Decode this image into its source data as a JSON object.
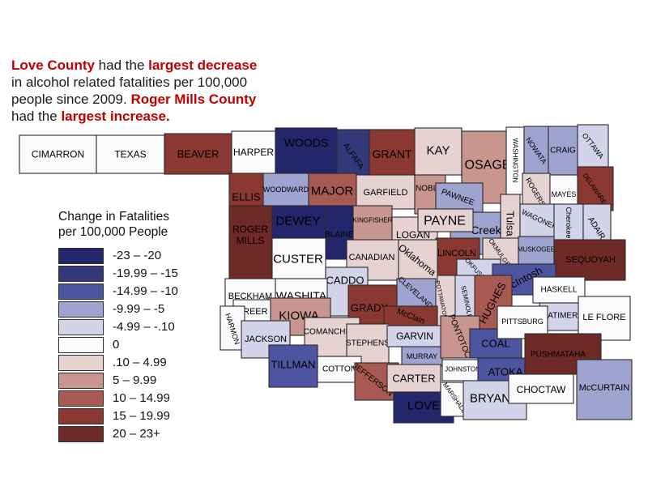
{
  "colors": {
    "accent_red": "#c00000",
    "text": "#1a1a1a",
    "county_stroke": "#2b2b2b"
  },
  "annotation": {
    "segments": [
      {
        "text": "Love County",
        "em": true
      },
      {
        "text": " had the ",
        "em": false
      },
      {
        "text": "largest decrease",
        "em": true
      },
      {
        "text": "\nin alcohol related fatalities per 100,000\npeople since 2009. ",
        "em": false
      },
      {
        "text": "Roger Mills County",
        "em": true
      },
      {
        "text": "\nhad the ",
        "em": false
      },
      {
        "text": "largest increase.",
        "em": true
      }
    ]
  },
  "legend": {
    "title": "Change in Fatalities\nper 100,000 People"
  },
  "chart_data": {
    "type": "choropleth",
    "region": "Oklahoma counties",
    "title": "Change in Fatalities per 100,000 People",
    "note": "Change in alcohol related fatalities per 100,000 people since 2009; Love County largest decrease, Roger Mills County largest increase",
    "buckets": [
      {
        "label": "-23 – -20",
        "color": "#23266b"
      },
      {
        "label": "-19.99 – -15",
        "color": "#333879"
      },
      {
        "label": "-14.99 – -10",
        "color": "#4d55a0"
      },
      {
        "label": "-9.99 – -5",
        "color": "#9fa3cf"
      },
      {
        "label": "-4.99 – -.10",
        "color": "#d3d3e9"
      },
      {
        "label": "0",
        "color": "#fbfbfe"
      },
      {
        "label": ".10 – 4.99",
        "color": "#e6d3d1"
      },
      {
        "label": "5 – 9.99",
        "color": "#c8958f"
      },
      {
        "label": "10 – 14.99",
        "color": "#a85a52"
      },
      {
        "label": "15 – 19.99",
        "color": "#8b3833"
      },
      {
        "label": "20 – 23+",
        "color": "#6e2a26"
      }
    ],
    "counties": [
      {
        "n": "CIMARRON",
        "b": 5,
        "r": [
          24,
          167,
          95,
          47
        ],
        "fs": 12
      },
      {
        "n": "TEXAS",
        "b": 5,
        "r": [
          119,
          167,
          84,
          47
        ],
        "fs": 12
      },
      {
        "n": "BEAVER",
        "b": 9,
        "r": [
          203,
          165,
          83,
          50
        ],
        "fs": 13
      },
      {
        "n": "HARPER",
        "b": 5,
        "r": [
          286,
          162,
          54,
          52
        ],
        "fs": 12
      },
      {
        "n": "WOODS",
        "b": 0,
        "r": [
          340,
          158,
          76,
          58
        ],
        "fs": 14,
        "lbl": [
          378,
          176
        ]
      },
      {
        "n": "ALFAFA",
        "b": 1,
        "r": [
          416,
          160,
          40,
          68
        ],
        "fs": 10,
        "rot": 55,
        "lbl": [
          436,
          193
        ]
      },
      {
        "n": "GRANT",
        "b": 9,
        "r": [
          456,
          160,
          56,
          58
        ],
        "fs": 14,
        "lbl": [
          484,
          190
        ]
      },
      {
        "n": "KAY",
        "b": 6,
        "r": [
          512,
          158,
          58,
          58
        ],
        "fs": 15,
        "lbl": [
          541,
          186
        ]
      },
      {
        "n": "OSAGE",
        "b": 7,
        "r": [
          570,
          162,
          66,
          89
        ],
        "fs": 16,
        "lbl": [
          602,
          204
        ]
      },
      {
        "n": "WASHINGTON",
        "b": 5,
        "r": [
          625,
          157,
          22,
          83
        ],
        "fs": 8,
        "rot": 90,
        "lbl": [
          636,
          198
        ]
      },
      {
        "n": "NOWATA",
        "b": 3,
        "r": [
          647,
          156,
          30,
          62
        ],
        "fs": 9,
        "rot": 55,
        "lbl": [
          662,
          186
        ]
      },
      {
        "n": "CRAIG",
        "b": 3,
        "r": [
          677,
          156,
          36,
          60
        ],
        "fs": 10,
        "lbl": [
          695,
          186
        ]
      },
      {
        "n": "OTTAWA",
        "b": 4,
        "r": [
          713,
          154,
          38,
          52
        ],
        "fs": 9,
        "rot": 52,
        "lbl": [
          732,
          180
        ]
      },
      {
        "n": "DELAWARE",
        "b": 9,
        "r": [
          713,
          206,
          44,
          54
        ],
        "fs": 8,
        "rot": 55,
        "lbl": [
          734,
          233
        ]
      },
      {
        "n": "ELLIS",
        "b": 9,
        "r": [
          283,
          214,
          42,
          58
        ],
        "fs": 13,
        "lbl": [
          304,
          243
        ]
      },
      {
        "n": "WOODWARD",
        "b": 3,
        "r": [
          325,
          214,
          56,
          40
        ],
        "fs": 9,
        "lbl": [
          353,
          234
        ]
      },
      {
        "n": "MAJOR",
        "b": 8,
        "r": [
          381,
          214,
          59,
          42
        ],
        "fs": 15,
        "lbl": [
          410,
          236
        ]
      },
      {
        "n": "GARFIELD",
        "b": 6,
        "r": [
          440,
          216,
          72,
          42
        ],
        "fs": 11,
        "lbl": [
          476,
          238
        ]
      },
      {
        "n": "NOBLE",
        "b": 7,
        "r": [
          512,
          216,
          38,
          48
        ],
        "fs": 10,
        "lbl": [
          530,
          233
        ]
      },
      {
        "n": "PAWNEE",
        "b": 3,
        "r": [
          538,
          226,
          58,
          36
        ],
        "fs": 10,
        "rot": 20,
        "lbl": [
          565,
          244
        ]
      },
      {
        "n": "ROGERS",
        "b": 6,
        "r": [
          645,
          214,
          34,
          54
        ],
        "fs": 9,
        "rot": 60,
        "lbl": [
          661,
          237
        ]
      },
      {
        "n": "MAYES",
        "b": 5,
        "r": [
          679,
          216,
          34,
          46
        ],
        "fs": 9,
        "lbl": [
          696,
          240
        ]
      },
      {
        "n": "ROGER MILLS",
        "b": 10,
        "r": [
          283,
          254,
          53,
          92
        ],
        "fs": 12,
        "lines": [
          "ROGER",
          "MILLS"
        ],
        "lbl": [
          309,
          290
        ]
      },
      {
        "n": "DEWEY",
        "b": 0,
        "r": [
          336,
          254,
          66,
          40
        ],
        "fs": 15,
        "lbl": [
          368,
          273
        ]
      },
      {
        "n": "BLAINE",
        "b": 0,
        "r": [
          402,
          254,
          34,
          66
        ],
        "fs": 10,
        "lbl": [
          419,
          290
        ]
      },
      {
        "n": "KINGFISHER",
        "b": 7,
        "r": [
          436,
          254,
          48,
          48
        ],
        "fs": 8,
        "lbl": [
          460,
          272
        ]
      },
      {
        "n": "CUSTER",
        "b": 5,
        "r": [
          336,
          294,
          66,
          52
        ],
        "fs": 15,
        "lbl": [
          368,
          320
        ]
      },
      {
        "n": "LOGAN",
        "b": 6,
        "r": [
          484,
          268,
          56,
          46
        ],
        "fs": 12,
        "lbl": [
          510,
          290
        ]
      },
      {
        "n": "Creek",
        "b": 3,
        "r": [
          556,
          262,
          62,
          52
        ],
        "fs": 14,
        "lbl": [
          600,
          284
        ]
      },
      {
        "n": "PAYNE",
        "b": 6,
        "r": [
          516,
          258,
          68,
          28
        ],
        "fs": 16,
        "lbl": [
          549,
          273
        ]
      },
      {
        "n": "LINCOLN",
        "b": 9,
        "r": [
          538,
          294,
          54,
          46
        ],
        "fs": 11,
        "lbl": [
          564,
          313
        ]
      },
      {
        "n": "Tulsa",
        "b": 6,
        "r": [
          618,
          240,
          24,
          74
        ],
        "fs": 13,
        "rot": 90,
        "lbl": [
          630,
          276
        ]
      },
      {
        "n": "WAGONER",
        "b": 4,
        "r": [
          642,
          252,
          52,
          40
        ],
        "fs": 9,
        "rot": 25,
        "lbl": [
          666,
          271
        ]
      },
      {
        "n": "Cherokee",
        "b": 4,
        "r": [
          684,
          252,
          36,
          44
        ],
        "fs": 9,
        "rot": 90,
        "lbl": [
          702,
          275
        ]
      },
      {
        "n": "ADAIR",
        "b": 4,
        "r": [
          720,
          252,
          34,
          70
        ],
        "fs": 10,
        "rot": 58,
        "lbl": [
          736,
          282
        ]
      },
      {
        "n": "OKMULGEE",
        "b": 6,
        "r": [
          596,
          294,
          46,
          42
        ],
        "fs": 8,
        "rot": 55,
        "lbl": [
          618,
          314
        ]
      },
      {
        "n": "MUSKOGEE",
        "b": 3,
        "r": [
          640,
          292,
          44,
          34
        ],
        "fs": 8,
        "lbl": [
          662,
          308
        ]
      },
      {
        "n": "SEQUOYAH",
        "b": 10,
        "r": [
          684,
          296,
          88,
          50
        ],
        "fs": 11,
        "lbl": [
          729,
          321
        ]
      },
      {
        "n": "OKFUSKEE",
        "b": 4,
        "r": [
          564,
          320,
          54,
          34
        ],
        "fs": 8,
        "rot": 48,
        "lbl": [
          590,
          336
        ]
      },
      {
        "n": "McIntosh",
        "b": 2,
        "r": [
          608,
          326,
          78,
          38
        ],
        "fs": 13,
        "rot": -28,
        "lbl": [
          645,
          345
        ]
      },
      {
        "n": "SEMINOLE",
        "b": 4,
        "r": [
          560,
          340,
          32,
          68
        ],
        "fs": 8,
        "rot": 78,
        "lbl": [
          576,
          373
        ]
      },
      {
        "n": "POTTAWATOMIE",
        "b": 6,
        "r": [
          528,
          340,
          34,
          70
        ],
        "fs": 7,
        "rot": 78,
        "lbl": [
          545,
          374
        ]
      },
      {
        "n": "HUGHES",
        "b": 8,
        "r": [
          586,
          340,
          46,
          70
        ],
        "fs": 13,
        "rot": -62,
        "lbl": [
          608,
          374
        ]
      },
      {
        "n": "CANADIAN",
        "b": 6,
        "r": [
          428,
          296,
          64,
          50
        ],
        "fs": 11,
        "lbl": [
          459,
          318
        ]
      },
      {
        "n": "Oklahoma",
        "b": 6,
        "r": [
          492,
          296,
          48,
          52
        ],
        "fs": 12,
        "rot": 38,
        "lbl": [
          515,
          321
        ]
      },
      {
        "n": "CLEVELAND",
        "b": 3,
        "r": [
          490,
          344,
          48,
          34
        ],
        "fs": 9,
        "rot": 42,
        "lbl": [
          513,
          361
        ]
      },
      {
        "n": "CADDO",
        "b": 4,
        "r": [
          402,
          330,
          52,
          60
        ],
        "fs": 13,
        "lbl": [
          426,
          346
        ]
      },
      {
        "n": "WASHITA",
        "b": 5,
        "r": [
          340,
          344,
          64,
          38
        ],
        "fs": 14,
        "lbl": [
          372,
          365
        ]
      },
      {
        "n": "BECKHAM",
        "b": 5,
        "r": [
          278,
          344,
          62,
          44
        ],
        "fs": 11,
        "lbl": [
          309,
          366
        ]
      },
      {
        "n": "KIOWA",
        "b": 7,
        "r": [
          330,
          368,
          78,
          46
        ],
        "fs": 15,
        "lbl": [
          369,
          390
        ]
      },
      {
        "n": "GRADY",
        "b": 9,
        "r": [
          430,
          352,
          60,
          56
        ],
        "fs": 13,
        "lbl": [
          456,
          380
        ]
      },
      {
        "n": "McClain",
        "b": 9,
        "r": [
          474,
          378,
          66,
          26
        ],
        "fs": 10,
        "rot": 22,
        "lbl": [
          507,
          391
        ]
      },
      {
        "n": "GREER",
        "b": 5,
        "r": [
          288,
          370,
          46,
          30
        ],
        "fs": 11,
        "lbl": [
          311,
          385
        ]
      },
      {
        "n": "HARMON",
        "b": 5,
        "r": [
          272,
          378,
          30,
          54
        ],
        "fs": 9,
        "rot": 72,
        "lbl": [
          287,
          406
        ]
      },
      {
        "n": "JACKSON",
        "b": 4,
        "r": [
          298,
          396,
          60,
          46
        ],
        "fs": 11,
        "lbl": [
          328,
          419
        ]
      },
      {
        "n": "COMANCHE",
        "b": 6,
        "r": [
          376,
          392,
          68,
          48
        ],
        "fs": 10,
        "lbl": [
          404,
          410
        ]
      },
      {
        "n": "STEPHENS",
        "b": 6,
        "r": [
          428,
          400,
          52,
          50
        ],
        "fs": 10,
        "lbl": [
          454,
          424
        ]
      },
      {
        "n": "TILLMAN",
        "b": 2,
        "r": [
          332,
          426,
          60,
          52
        ],
        "fs": 13,
        "lbl": [
          362,
          450
        ]
      },
      {
        "n": "COTTON",
        "b": 5,
        "r": [
          392,
          440,
          54,
          32
        ],
        "fs": 10,
        "lbl": [
          419,
          456
        ]
      },
      {
        "n": "JEFFERSON",
        "b": 8,
        "r": [
          438,
          448,
          54,
          46
        ],
        "fs": 10,
        "rot": 38,
        "lbl": [
          460,
          469
        ]
      },
      {
        "n": "GARVIN",
        "b": 4,
        "r": [
          478,
          402,
          68,
          26
        ],
        "fs": 12,
        "lbl": [
          512,
          415
        ]
      },
      {
        "n": "MURRAY",
        "b": 3,
        "r": [
          496,
          428,
          50,
          24
        ],
        "fs": 9,
        "lbl": [
          521,
          440
        ]
      },
      {
        "n": "CARTER",
        "b": 6,
        "r": [
          478,
          450,
          66,
          34
        ],
        "fs": 13,
        "lbl": [
          511,
          467
        ]
      },
      {
        "n": "LOVE",
        "b": 0,
        "r": [
          486,
          484,
          74,
          38
        ],
        "fs": 15,
        "lbl": [
          523,
          501
        ]
      },
      {
        "n": "PONTOTOC",
        "b": 7,
        "r": [
          544,
          390,
          48,
          52
        ],
        "fs": 10,
        "rot": 68,
        "lbl": [
          567,
          415
        ]
      },
      {
        "n": "COAL",
        "b": 2,
        "r": [
          580,
          406,
          64,
          36
        ],
        "fs": 13,
        "lbl": [
          612,
          424
        ]
      },
      {
        "n": "JOHNSTON",
        "b": 5,
        "r": [
          546,
          444,
          58,
          26
        ],
        "fs": 8,
        "lbl": [
          571,
          456
        ]
      },
      {
        "n": "ATOKA",
        "b": 2,
        "r": [
          590,
          442,
          68,
          34
        ],
        "fs": 13,
        "lbl": [
          624,
          459
        ]
      },
      {
        "n": "MARSHALL",
        "b": 5,
        "r": [
          544,
          472,
          38,
          42
        ],
        "fs": 8,
        "rot": 55,
        "lbl": [
          561,
          491
        ]
      },
      {
        "n": "BRYAN",
        "b": 4,
        "r": [
          572,
          470,
          78,
          48
        ],
        "fs": 15,
        "lbl": [
          605,
          492
        ]
      },
      {
        "n": "HASKELL",
        "b": 5,
        "r": [
          658,
          342,
          64,
          32
        ],
        "fs": 10,
        "lbl": [
          690,
          358
        ]
      },
      {
        "n": "LATIMER",
        "b": 4,
        "r": [
          666,
          374,
          56,
          34
        ],
        "fs": 10,
        "lbl": [
          692,
          390
        ]
      },
      {
        "n": "LE FLORE",
        "b": 5,
        "r": [
          714,
          366,
          64,
          54
        ],
        "fs": 11,
        "lbl": [
          746,
          392
        ]
      },
      {
        "n": "PITTSBURG",
        "b": 5,
        "r": [
          614,
          378,
          62,
          40
        ],
        "fs": 9,
        "lbl": [
          645,
          397
        ]
      },
      {
        "n": "PUSHMATAHA",
        "b": 10,
        "r": [
          648,
          412,
          94,
          50
        ],
        "fs": 10,
        "lbl": [
          689,
          438
        ]
      },
      {
        "n": "CHOCTAW",
        "b": 5,
        "r": [
          628,
          462,
          80,
          36
        ],
        "fs": 12,
        "lbl": [
          668,
          481
        ]
      },
      {
        "n": "McCURTAIN",
        "b": 3,
        "r": [
          712,
          444,
          68,
          74
        ],
        "fs": 11,
        "lbl": [
          746,
          479
        ]
      }
    ]
  }
}
